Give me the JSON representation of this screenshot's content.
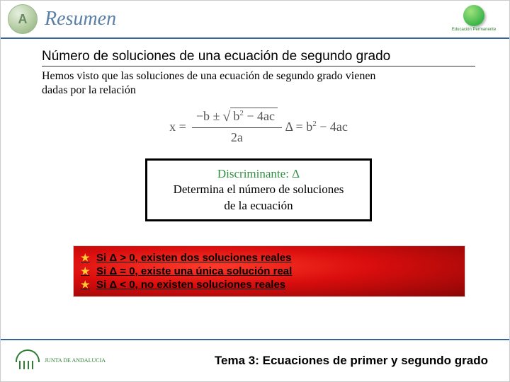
{
  "header": {
    "circle_letter": "A",
    "title": "Resumen",
    "right_logo_text": "Educación Permanente"
  },
  "section": {
    "title": "Número de soluciones de una ecuación de segundo grado",
    "intro": "Hemos visto que las soluciones de una ecuación de segundo grado vienen dadas por la relación"
  },
  "formula": {
    "x_equals": "x =",
    "num_prefix": "−b ±",
    "sqrt_body": "b",
    "sqrt_exp": "2",
    "sqrt_tail": " − 4ac",
    "denom": "2a",
    "delta": "Δ = b",
    "delta_exp": "2",
    "delta_tail": " − 4ac"
  },
  "discriminant": {
    "title": "Discriminante: Δ",
    "line1": "Determina el número de soluciones",
    "line2": "de la ecuación"
  },
  "cases": {
    "c1": "Si Δ > 0, existen dos soluciones reales",
    "c2": "Si Δ = 0, existe una única solución real",
    "c3": "Si Δ < 0, no existen soluciones reales"
  },
  "footer": {
    "junta1": "JUNTA DE ANDALUCIA",
    "topic": "Tema 3: Ecuaciones de primer y segundo grado"
  },
  "colors": {
    "header_rule": "#35639b",
    "disc_title": "#2f8f3f",
    "star": "#ffcc33"
  }
}
